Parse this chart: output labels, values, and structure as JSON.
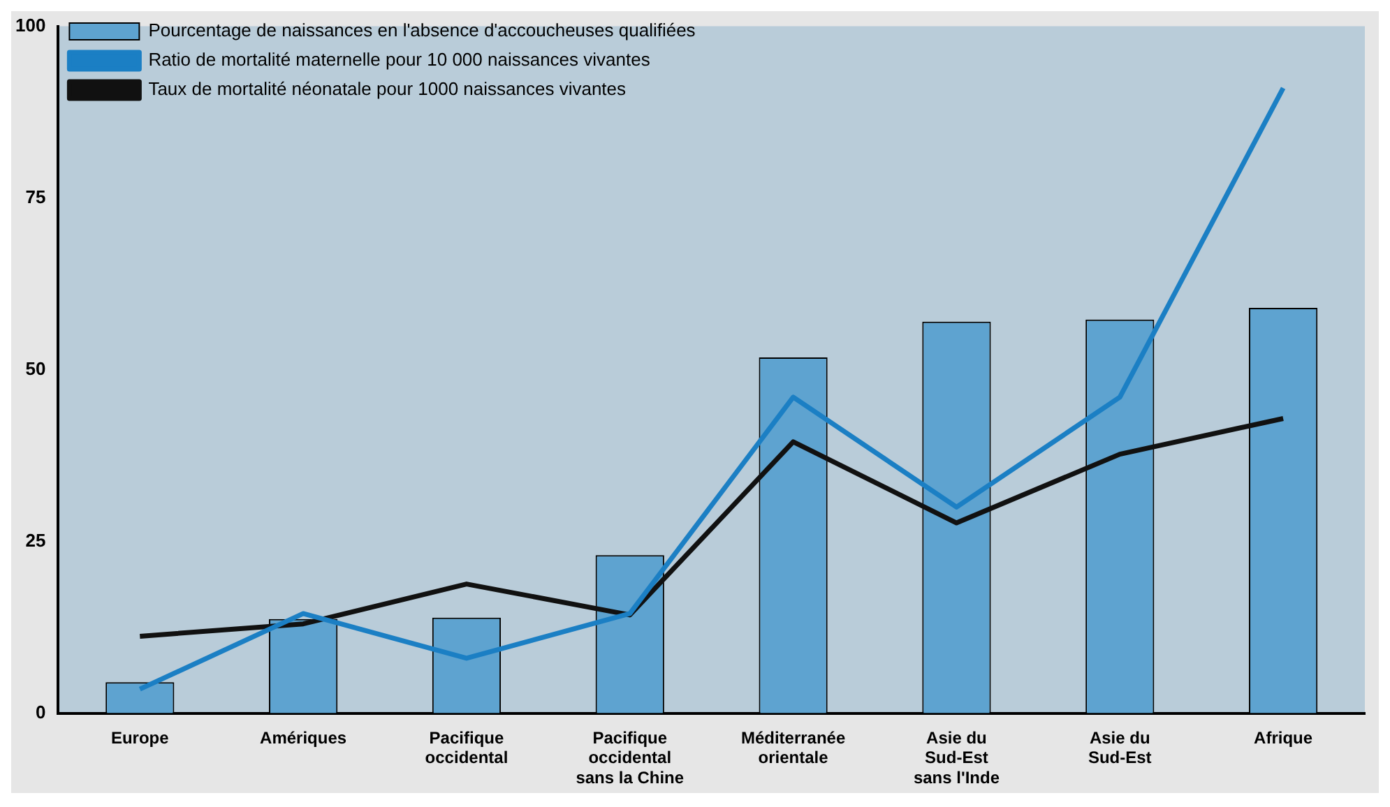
{
  "chart_data": {
    "type": "bar",
    "categories": [
      "Europe",
      "Amériques",
      "Pacifique\noccidental",
      "Pacifique\noccidental\nsans la Chine",
      "Méditerranée\norientale",
      "Asie du\nSud-Est\nsans l'Inde",
      "Asie du\nSud-Est",
      "Afrique"
    ],
    "series": [
      {
        "name": "Pourcentage de naissances en l'absence d'accoucheuses qualifiées",
        "color": "#5ea3d0",
        "values": [
          4.5,
          13.7,
          13.9,
          23,
          51.8,
          57,
          57.3,
          59
        ]
      },
      {
        "name": "Ratio de mortalité maternelle pour 10 000 naissances vivantes",
        "type": "line",
        "color": "#1b7fc4",
        "values": [
          3.5,
          14.5,
          8,
          14.5,
          46,
          30,
          46,
          91
        ]
      },
      {
        "name": "Taux de mortalité néonatale pour 1000 naissances vivantes",
        "type": "line",
        "color": "#111111",
        "values": [
          11.2,
          13,
          18.8,
          14.3,
          39.5,
          27.7,
          37.7,
          42.9
        ]
      }
    ],
    "ylim": [
      0,
      100
    ],
    "yticks": [
      0,
      25,
      50,
      75,
      100
    ],
    "grid": false,
    "legend": "top left",
    "marker": "none"
  }
}
